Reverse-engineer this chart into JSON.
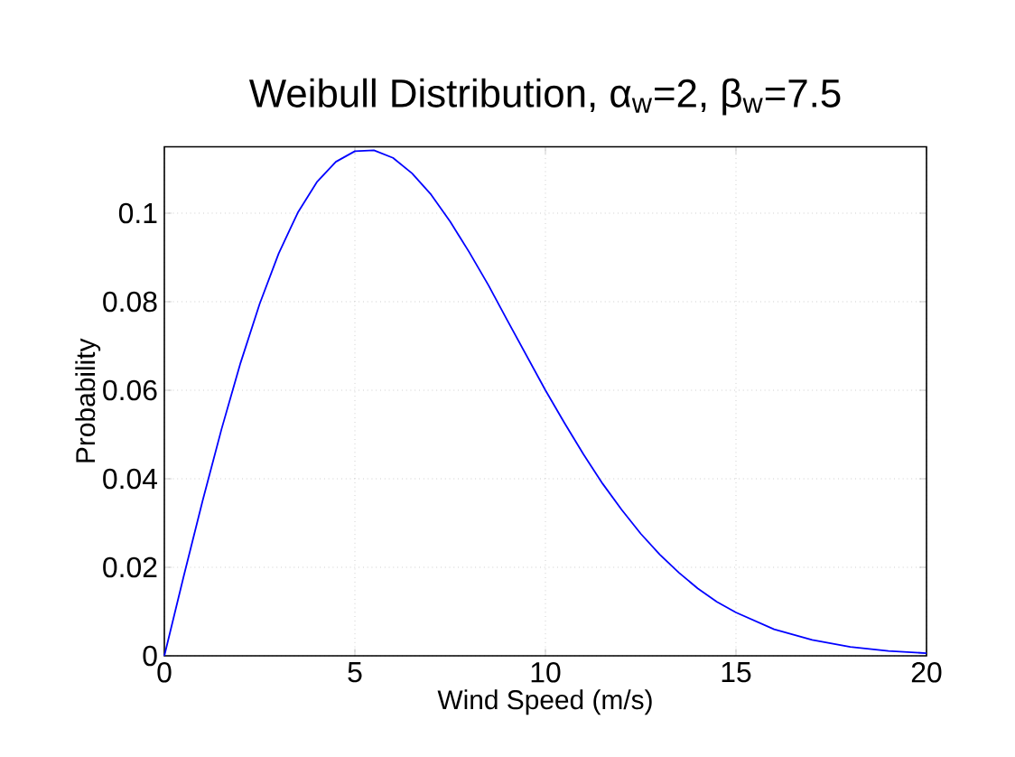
{
  "chart_data": {
    "type": "line",
    "title": "Weibull Distribution, α$_{w}$=2, β$_{w}$=7.5",
    "xlabel": "Wind Speed (m/s)",
    "ylabel": "Probability",
    "x": [
      0,
      0.5,
      1,
      1.5,
      2,
      2.5,
      3,
      3.5,
      4,
      4.5,
      5,
      5.5,
      6,
      6.5,
      7,
      7.5,
      8,
      8.5,
      9,
      9.5,
      10,
      10.5,
      11,
      11.5,
      12,
      12.5,
      13,
      13.5,
      14,
      14.5,
      15,
      16,
      17,
      18,
      19,
      20
    ],
    "series": [
      {
        "color": "#0000ff",
        "values": [
          0,
          0.0177,
          0.0349,
          0.0512,
          0.0662,
          0.0795,
          0.0909,
          0.1001,
          0.107,
          0.1116,
          0.114,
          0.1142,
          0.1125,
          0.109,
          0.1042,
          0.0981,
          0.0912,
          0.0838,
          0.0758,
          0.0679,
          0.06,
          0.0526,
          0.0455,
          0.0389,
          0.033,
          0.0276,
          0.0229,
          0.0188,
          0.0152,
          0.0122,
          0.0098,
          0.006,
          0.0036,
          0.002,
          0.0011,
          0.0006
        ]
      }
    ],
    "xlim": [
      0,
      20
    ],
    "ylim": [
      0,
      0.115
    ],
    "xticks": [
      0,
      5,
      10,
      15,
      20
    ],
    "yticks": [
      0,
      0.02,
      0.04,
      0.06,
      0.08,
      0.1
    ],
    "grid": true,
    "marker": "none",
    "line_style": "solid"
  }
}
